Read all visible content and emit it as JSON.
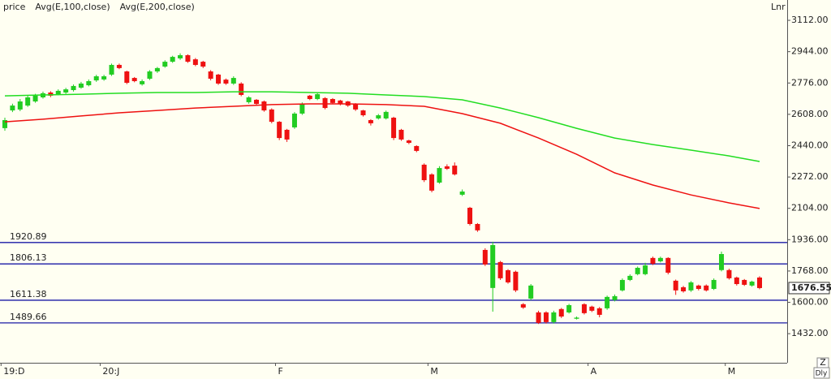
{
  "chart_data": {
    "type": "candlestick",
    "categories": [
      "19:D",
      null,
      null,
      null,
      null,
      null,
      null,
      null,
      null,
      null,
      null,
      null,
      null,
      "20:J",
      null,
      null,
      null,
      null,
      null,
      null,
      null,
      null,
      null,
      null,
      null,
      null,
      null,
      null,
      null,
      null,
      null,
      null,
      null,
      null,
      null,
      null,
      "F",
      null,
      null,
      null,
      null,
      null,
      null,
      null,
      null,
      null,
      null,
      null,
      null,
      null,
      null,
      null,
      null,
      null,
      null,
      null,
      "M",
      null,
      null,
      null,
      null,
      null,
      null,
      null,
      null,
      null,
      null,
      null,
      null,
      null,
      null,
      null,
      null,
      null,
      null,
      null,
      null,
      "A",
      null,
      null,
      null,
      null,
      null,
      null,
      null,
      null,
      null,
      null,
      null,
      null,
      null,
      null,
      null,
      null,
      null,
      "M",
      null,
      null,
      null,
      null
    ],
    "series": [
      {
        "name": "price",
        "color": "#1a1aa6",
        "up_color": "#22cc22",
        "down_color": "#ee1111",
        "open": [
          2534,
          2629,
          2634,
          2655,
          2677,
          2699,
          2725,
          2716,
          2725,
          2738,
          2751,
          2764,
          2790,
          2795,
          2821,
          2873,
          2838,
          2803,
          2769,
          2799,
          2838,
          2864,
          2890,
          2908,
          2925,
          2903,
          2890,
          2838,
          2821,
          2794,
          2773,
          2773,
          2673,
          2686,
          2677,
          2634,
          2568,
          2525,
          2538,
          2612,
          2708,
          2690,
          2695,
          2690,
          2682,
          2677,
          2664,
          2629,
          2577,
          2586,
          2586,
          2590,
          2525,
          2468,
          2438,
          2338,
          2286,
          2242,
          2329,
          2333,
          2177,
          2107,
          2020,
          1881,
          1677,
          1816,
          1772,
          1764,
          1590,
          1620,
          1546,
          1546,
          1494,
          1564,
          1546,
          1512,
          1590,
          1577,
          1568,
          1568,
          1612,
          1664,
          1720,
          1751,
          1751,
          1838,
          1820,
          1838,
          1716,
          1681,
          1664,
          1690,
          1690,
          1672,
          1773,
          1773,
          1733,
          1720,
          1690,
          1733
        ],
        "high": [
          2590,
          2665,
          2690,
          2710,
          2718,
          2730,
          2732,
          2742,
          2750,
          2768,
          2782,
          2795,
          2820,
          2820,
          2880,
          2880,
          2842,
          2808,
          2795,
          2845,
          2862,
          2898,
          2922,
          2935,
          2930,
          2910,
          2895,
          2845,
          2825,
          2800,
          2812,
          2780,
          2705,
          2690,
          2682,
          2640,
          2572,
          2530,
          2620,
          2672,
          2712,
          2722,
          2700,
          2695,
          2686,
          2680,
          2668,
          2632,
          2582,
          2610,
          2628,
          2595,
          2530,
          2472,
          2442,
          2345,
          2292,
          2330,
          2340,
          2350,
          2205,
          2112,
          2025,
          1890,
          1925,
          1822,
          1778,
          1770,
          1596,
          1698,
          1555,
          1552,
          1555,
          1570,
          1592,
          1524,
          1595,
          1582,
          1575,
          1636,
          1642,
          1728,
          1750,
          1792,
          1812,
          1845,
          1845,
          1842,
          1722,
          1688,
          1714,
          1695,
          1696,
          1728,
          1872,
          1780,
          1738,
          1725,
          1716,
          1740
        ],
        "low": [
          2520,
          2620,
          2625,
          2648,
          2670,
          2692,
          2700,
          2710,
          2718,
          2730,
          2745,
          2758,
          2782,
          2788,
          2814,
          2850,
          2770,
          2780,
          2762,
          2792,
          2830,
          2858,
          2884,
          2900,
          2884,
          2866,
          2856,
          2790,
          2766,
          2766,
          2766,
          2705,
          2665,
          2658,
          2622,
          2560,
          2470,
          2460,
          2530,
          2605,
          2684,
          2684,
          2635,
          2662,
          2656,
          2648,
          2626,
          2596,
          2548,
          2580,
          2580,
          2470,
          2466,
          2448,
          2405,
          2245,
          2190,
          2236,
          2310,
          2280,
          2170,
          2012,
          1978,
          1795,
          1550,
          1720,
          1700,
          1655,
          1565,
          1612,
          1484,
          1486,
          1486,
          1516,
          1540,
          1508,
          1535,
          1548,
          1520,
          1560,
          1605,
          1658,
          1714,
          1745,
          1745,
          1800,
          1814,
          1750,
          1640,
          1652,
          1656,
          1664,
          1658,
          1666,
          1766,
          1722,
          1690,
          1688,
          1684,
          1670
        ],
        "close": [
          2577,
          2655,
          2677,
          2699,
          2708,
          2721,
          2708,
          2734,
          2742,
          2760,
          2773,
          2786,
          2812,
          2812,
          2873,
          2856,
          2777,
          2786,
          2786,
          2838,
          2856,
          2890,
          2916,
          2925,
          2890,
          2873,
          2864,
          2799,
          2773,
          2773,
          2803,
          2712,
          2699,
          2664,
          2629,
          2568,
          2481,
          2473,
          2612,
          2664,
          2690,
          2716,
          2642,
          2669,
          2664,
          2655,
          2634,
          2603,
          2560,
          2603,
          2621,
          2481,
          2473,
          2455,
          2412,
          2255,
          2199,
          2320,
          2316,
          2286,
          2194,
          2020,
          1986,
          1803,
          1907,
          1729,
          1707,
          1664,
          1572,
          1690,
          1490,
          1494,
          1546,
          1524,
          1585,
          1518,
          1542,
          1555,
          1533,
          1629,
          1633,
          1720,
          1742,
          1785,
          1798,
          1807,
          1838,
          1759,
          1664,
          1659,
          1707,
          1672,
          1664,
          1720,
          1859,
          1729,
          1698,
          1694,
          1711,
          1676.55
        ]
      },
      {
        "name": "Avg(E,100,close)",
        "color": "#ee1111",
        "x": [
          0,
          5,
          10,
          15,
          20,
          25,
          30,
          35,
          40,
          45,
          50,
          55,
          60,
          65,
          70,
          75,
          80,
          85,
          90,
          95,
          99
        ],
        "values": [
          2568,
          2582,
          2599,
          2616,
          2629,
          2642,
          2651,
          2660,
          2664,
          2664,
          2660,
          2651,
          2612,
          2560,
          2481,
          2394,
          2294,
          2229,
          2176,
          2133,
          2103
        ]
      },
      {
        "name": "Avg(E,200,close)",
        "color": "#22dd22",
        "x": [
          0,
          5,
          10,
          15,
          20,
          25,
          30,
          35,
          40,
          45,
          50,
          55,
          60,
          65,
          70,
          75,
          80,
          85,
          90,
          95,
          99
        ],
        "values": [
          2707,
          2712,
          2716,
          2721,
          2725,
          2725,
          2729,
          2729,
          2725,
          2721,
          2712,
          2703,
          2686,
          2642,
          2590,
          2533,
          2481,
          2446,
          2416,
          2385,
          2355
        ]
      }
    ],
    "ylim": [
      1276,
      3221
    ],
    "yticks": [
      {
        "value": 3112,
        "label": "3112.00"
      },
      {
        "value": 2944,
        "label": "2944.00"
      },
      {
        "value": 2776,
        "label": "2776.00"
      },
      {
        "value": 2608,
        "label": "2608.00"
      },
      {
        "value": 2440,
        "label": "2440.00"
      },
      {
        "value": 2272,
        "label": "2272.00"
      },
      {
        "value": 2104,
        "label": "2104.00"
      },
      {
        "value": 1936,
        "label": "1936.00"
      },
      {
        "value": 1768,
        "label": "1768.00"
      },
      {
        "value": 1600,
        "label": "1600.00"
      },
      {
        "value": 1432,
        "label": "1432.00"
      }
    ],
    "levels": [
      1920.89,
      1806.13,
      1611.38,
      1489.66
    ],
    "level_color": "#1a1aa6",
    "last_price": 1676.55,
    "controls": {
      "scale": "Lnr",
      "zoom": "Z",
      "period": "Dly"
    }
  }
}
